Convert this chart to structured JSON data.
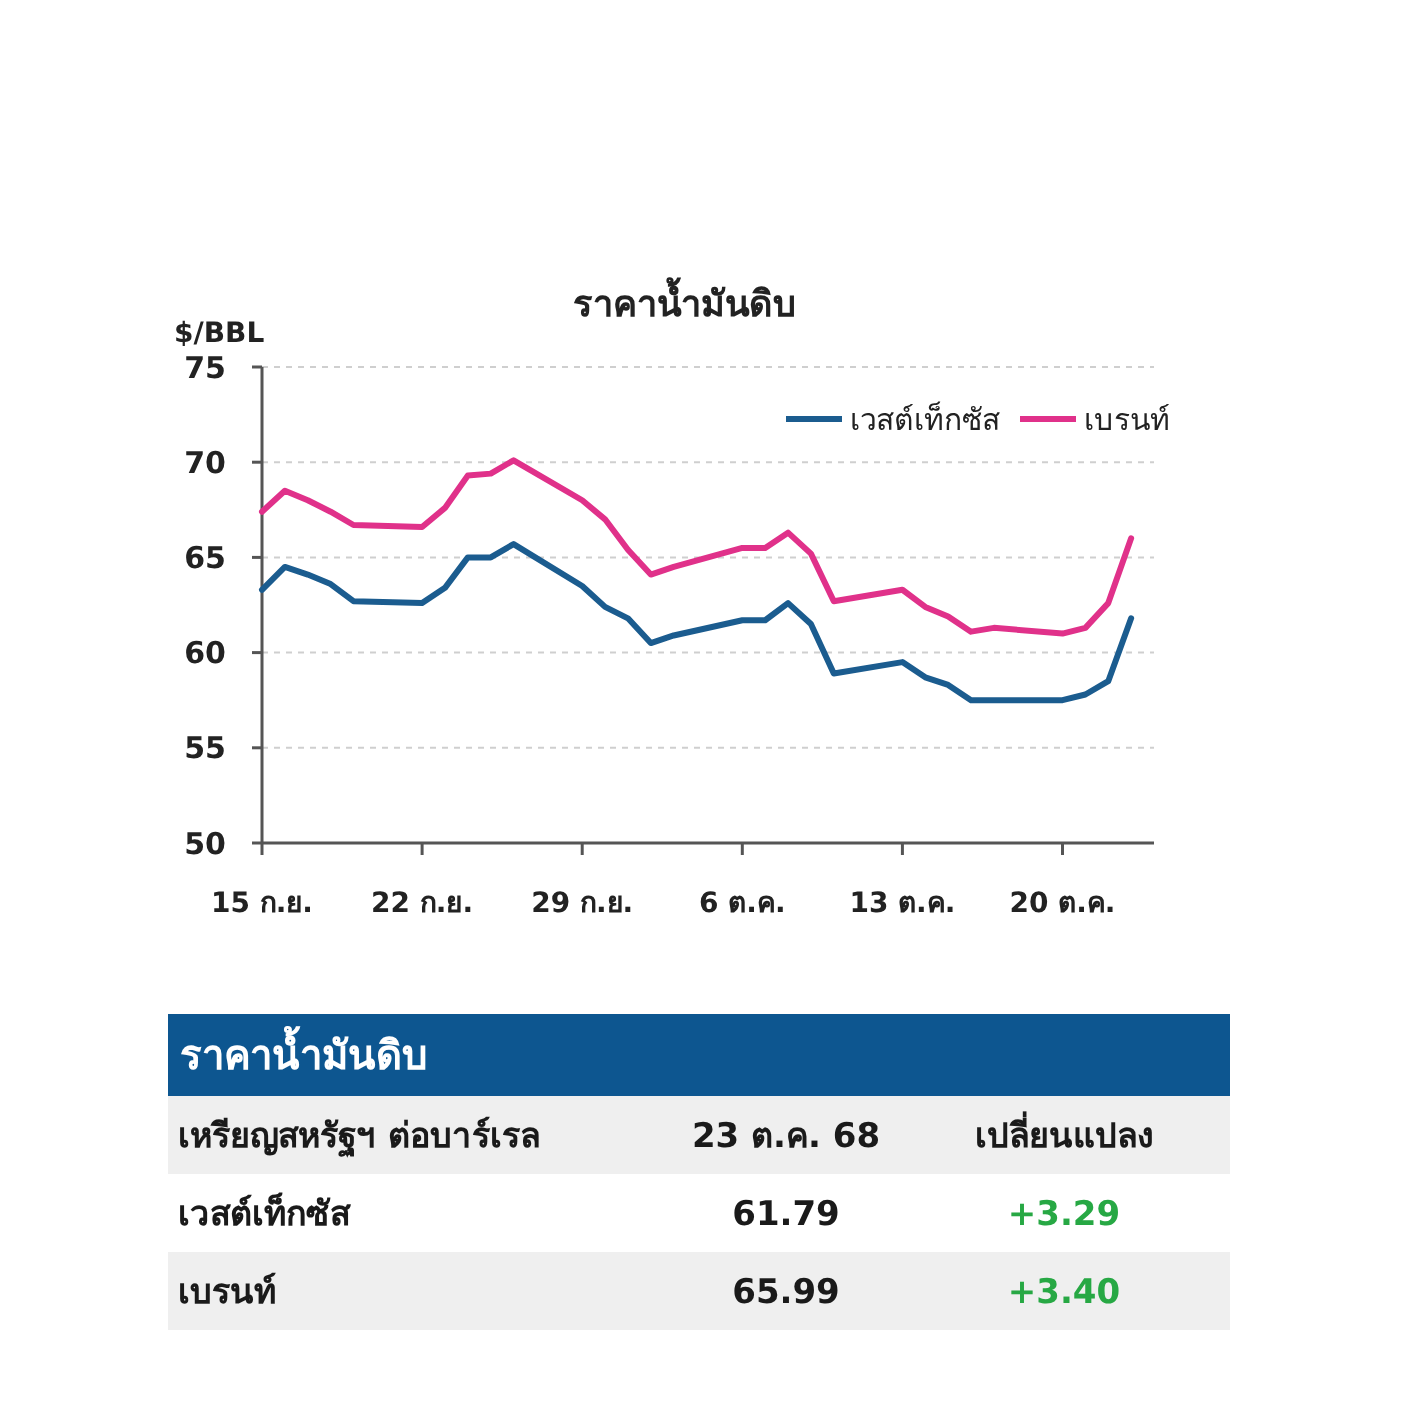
{
  "chart_data": [
    {
      "type": "line",
      "title": "ราคาน้ำมันดิบ",
      "ylabel": "$/BBL",
      "x": [
        "--09-15",
        "--09-16",
        "--09-17",
        "--09-18",
        "--09-19",
        "--09-22",
        "--09-23",
        "--09-24",
        "--09-25",
        "--09-26",
        "--09-29",
        "--09-30",
        "--10-01",
        "--10-02",
        "--10-03",
        "--10-06",
        "--10-07",
        "--10-08",
        "--10-09",
        "--10-10",
        "--10-13",
        "--10-14",
        "--10-15",
        "--10-16",
        "--10-17",
        "--10-20",
        "--10-21",
        "--10-22",
        "--10-23"
      ],
      "series": [
        {
          "name": "เวสต์เท็กซัส",
          "color": "#1b5c8f",
          "values": [
            63.3,
            64.5,
            64.1,
            63.6,
            62.7,
            62.6,
            63.4,
            65.0,
            65.0,
            65.7,
            63.5,
            62.4,
            61.8,
            60.5,
            60.9,
            61.7,
            61.7,
            62.6,
            61.5,
            58.9,
            59.5,
            58.7,
            58.3,
            57.5,
            57.5,
            57.5,
            57.8,
            58.5,
            61.8
          ]
        },
        {
          "name": "เบรนท์",
          "color": "#e0318a",
          "values": [
            67.4,
            68.5,
            68.0,
            67.4,
            66.7,
            66.6,
            67.6,
            69.3,
            69.4,
            70.1,
            68.0,
            67.0,
            65.4,
            64.1,
            64.5,
            65.5,
            65.5,
            66.3,
            65.2,
            62.7,
            63.3,
            62.4,
            61.9,
            61.1,
            61.3,
            61.0,
            61.3,
            62.6,
            66.0
          ]
        }
      ],
      "xlim": [
        "--09-15",
        "--10-24"
      ],
      "xticks": [
        {
          "value": "--09-15",
          "label": "15 ก.ย."
        },
        {
          "value": "--09-22",
          "label": "22 ก.ย."
        },
        {
          "value": "--09-29",
          "label": "29 ก.ย."
        },
        {
          "value": "--10-06",
          "label": "6 ต.ค."
        },
        {
          "value": "--10-13",
          "label": "13 ต.ค."
        },
        {
          "value": "--10-20",
          "label": "20 ต.ค."
        }
      ],
      "ylim": [
        50,
        75
      ],
      "yticks": [
        50,
        55,
        60,
        65,
        70,
        75
      ],
      "grid": "y",
      "legend": "top right"
    },
    {
      "type": "other",
      "title": "ราคาน้ำมันดิบ",
      "ylabel": "เหรียญสหรัฐฯ ต่อบาร์เรล",
      "categories": [
        "เวสต์เท็กซัส",
        "เบรนท์"
      ],
      "series": [
        {
          "name": "23 ต.ค. 68",
          "values": [
            61.79,
            65.99
          ],
          "value_labels": [
            "61.79",
            "65.99"
          ]
        },
        {
          "name": "เปลี่ยนแปลง",
          "values": [
            3.29,
            3.4
          ],
          "value_labels": [
            "+3.29",
            "+3.40"
          ]
        }
      ]
    }
  ]
}
